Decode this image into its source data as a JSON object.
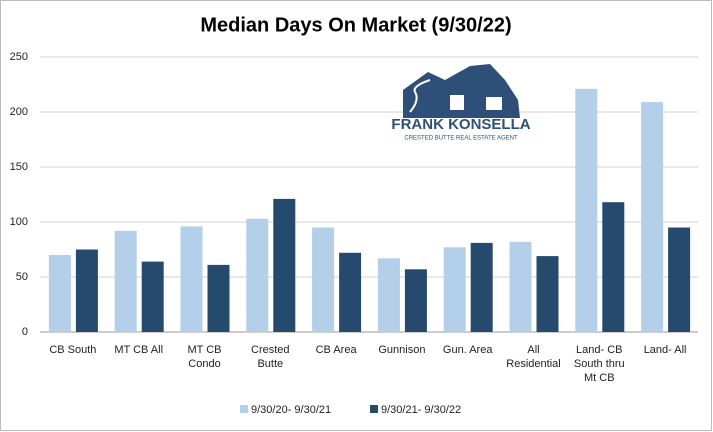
{
  "chart_data": {
    "type": "bar",
    "title": "Median Days On Market (9/30/22)",
    "categories": [
      "CB South",
      "MT CB All",
      "MT CB Condo",
      "Crested Butte",
      "CB Area",
      "Gunnison",
      "Gun. Area",
      "All Residential",
      "Land- CB South thru Mt CB",
      "Land- All"
    ],
    "series": [
      {
        "name": "9/30/20- 9/30/21",
        "color": "#b4cfea",
        "values": [
          70,
          92,
          96,
          103,
          95,
          67,
          77,
          82,
          221,
          209
        ]
      },
      {
        "name": "9/30/21- 9/30/22",
        "color": "#264a6e",
        "values": [
          75,
          64,
          61,
          121,
          72,
          57,
          81,
          69,
          118,
          95
        ]
      }
    ],
    "ylim": [
      0,
      250
    ],
    "yticks": [
      0,
      50,
      100,
      150,
      200,
      250
    ],
    "grid": true,
    "legend": "bottom"
  },
  "logo": {
    "name": "FRANK KONSELLA",
    "tagline": "CRESTED BUTTE REAL ESTATE AGENT"
  }
}
